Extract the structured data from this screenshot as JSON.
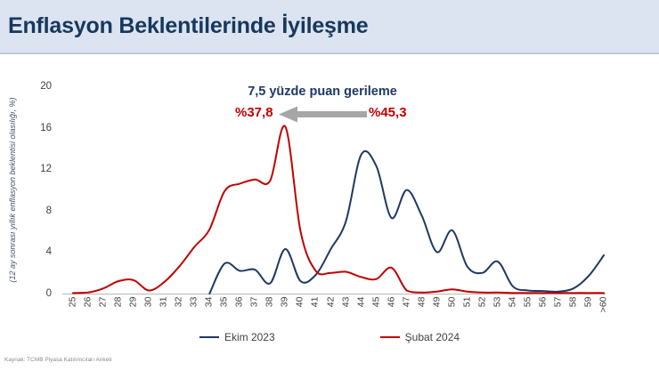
{
  "title": "Enflasyon Beklentilerinde İyileşme",
  "annotation": {
    "title": "7,5 yüzde puan gerileme",
    "left_value": "%37,8",
    "right_value": "%45,3",
    "arrow_direction": "left",
    "arrow_color": "#a6a6a6"
  },
  "source": "Kaynak: TCMB Piyasa Katılımcıları Anketi",
  "colors": {
    "title_navy": "#17375d",
    "series_ekim": "#1f3864",
    "series_subat": "#c00000",
    "band_bg": "#dbe4f0",
    "axis_line": "#b7b7b7",
    "tick_text": "#404040"
  },
  "chart_data": {
    "type": "line",
    "title": "Enflasyon Beklentilerinde İyileşme",
    "xlabel": "",
    "ylabel": "(12 ay sonrası yıllık enflasyon beklentisi olasılığı, %)",
    "ylim": [
      0,
      20
    ],
    "yticks": [
      0,
      4,
      8,
      12,
      16,
      20
    ],
    "grid": false,
    "legend_position": "bottom",
    "categories": [
      "25",
      "26",
      "27",
      "28",
      "29",
      "30",
      "31",
      "32",
      "33",
      "34",
      "35",
      "36",
      "37",
      "38",
      "39",
      "40",
      "41",
      "42",
      "43",
      "44",
      "45",
      "46",
      "47",
      "48",
      "49",
      "50",
      "51",
      "52",
      "53",
      "54",
      "55",
      "56",
      "57",
      "58",
      "59",
      ">60"
    ],
    "series": [
      {
        "name": "Ekim 2023",
        "color": "#1f3864",
        "values": [
          null,
          null,
          null,
          null,
          null,
          null,
          null,
          null,
          null,
          0,
          2.9,
          2.2,
          2.3,
          1.0,
          4.3,
          1.2,
          1.8,
          4.3,
          7.0,
          13.4,
          12.3,
          7.3,
          10.0,
          7.5,
          4.0,
          6.1,
          2.6,
          2.0,
          3.1,
          0.7,
          0.3,
          0.25,
          0.2,
          0.5,
          1.7,
          3.7
        ]
      },
      {
        "name": "Şubat 2024",
        "color": "#c00000",
        "values": [
          0.05,
          0.1,
          0.5,
          1.2,
          1.3,
          0.3,
          1.1,
          2.6,
          4.5,
          6.2,
          9.9,
          10.6,
          11.0,
          10.9,
          16.1,
          6.0,
          2.2,
          2.0,
          2.1,
          1.6,
          1.4,
          2.5,
          0.3,
          0.1,
          0.2,
          0.4,
          0.2,
          0.1,
          0.1,
          0.05,
          0.05,
          0.05,
          0.05,
          0.05,
          0.05,
          0.05
        ]
      }
    ]
  }
}
